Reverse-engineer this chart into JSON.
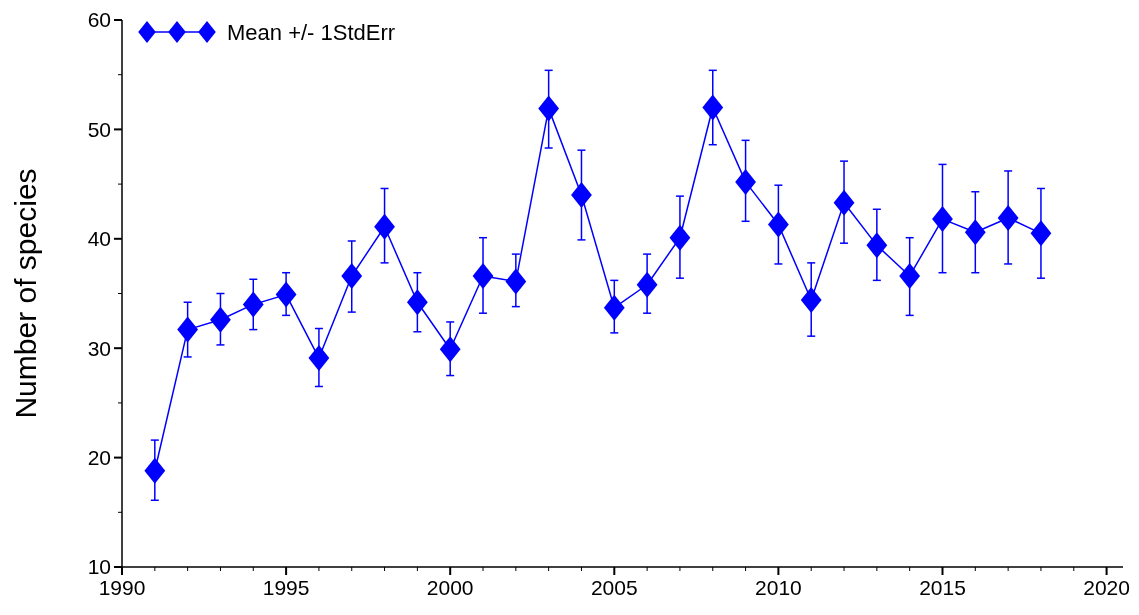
{
  "chart_data": {
    "type": "line",
    "ylabel": "Number of species",
    "x": [
      1991,
      1992,
      1993,
      1994,
      1995,
      1996,
      1997,
      1998,
      1999,
      2000,
      2001,
      2002,
      2003,
      2004,
      2005,
      2006,
      2007,
      2008,
      2009,
      2010,
      2011,
      2012,
      2013,
      2014,
      2015,
      2016,
      2017,
      2018
    ],
    "series": [
      {
        "name": "Mean +/- 1StdErr",
        "color": "#0000ff",
        "values": [
          18.8,
          31.7,
          32.6,
          34.0,
          34.9,
          29.1,
          36.6,
          41.1,
          34.2,
          29.9,
          36.6,
          36.1,
          51.9,
          44.0,
          33.7,
          35.8,
          40.1,
          52.0,
          45.2,
          41.3,
          34.4,
          43.3,
          39.4,
          36.6,
          41.8,
          40.6,
          41.9,
          40.5
        ],
        "errors": [
          [
            16.1,
            21.6
          ],
          [
            29.2,
            34.2
          ],
          [
            30.3,
            35.0
          ],
          [
            31.7,
            36.3
          ],
          [
            33.0,
            36.9
          ],
          [
            26.5,
            31.8
          ],
          [
            33.3,
            39.8
          ],
          [
            37.8,
            44.6
          ],
          [
            31.5,
            36.9
          ],
          [
            27.5,
            32.4
          ],
          [
            33.2,
            40.1
          ],
          [
            33.8,
            38.6
          ],
          [
            48.3,
            55.4
          ],
          [
            39.9,
            48.1
          ],
          [
            31.4,
            36.2
          ],
          [
            33.2,
            38.6
          ],
          [
            36.4,
            43.9
          ],
          [
            48.6,
            55.4
          ],
          [
            41.6,
            49.0
          ],
          [
            37.7,
            44.9
          ],
          [
            31.1,
            37.8
          ],
          [
            39.6,
            47.1
          ],
          [
            36.2,
            42.7
          ],
          [
            33.0,
            40.1
          ],
          [
            36.9,
            46.8
          ],
          [
            36.9,
            44.3
          ],
          [
            37.7,
            46.2
          ],
          [
            36.4,
            44.6
          ]
        ]
      }
    ],
    "xlim": [
      1990,
      2020.5
    ],
    "xticks": [
      1990,
      {
        "value": 1991,
        "label": null
      },
      {
        "value": 1992,
        "label": null
      },
      {
        "value": 1993,
        "label": null
      },
      {
        "value": 1994,
        "label": null
      },
      1995,
      {
        "value": 1996,
        "label": null
      },
      {
        "value": 1997,
        "label": null
      },
      {
        "value": 1998,
        "label": null
      },
      {
        "value": 1999,
        "label": null
      },
      2000,
      {
        "value": 2001,
        "label": null
      },
      {
        "value": 2002,
        "label": null
      },
      {
        "value": 2003,
        "label": null
      },
      {
        "value": 2004,
        "label": null
      },
      2005,
      {
        "value": 2006,
        "label": null
      },
      {
        "value": 2007,
        "label": null
      },
      {
        "value": 2008,
        "label": null
      },
      {
        "value": 2009,
        "label": null
      },
      2010,
      {
        "value": 2011,
        "label": null
      },
      {
        "value": 2012,
        "label": null
      },
      {
        "value": 2013,
        "label": null
      },
      {
        "value": 2014,
        "label": null
      },
      2015,
      {
        "value": 2016,
        "label": null
      },
      {
        "value": 2017,
        "label": null
      },
      {
        "value": 2018,
        "label": null
      },
      {
        "value": 2019,
        "label": null
      },
      2020
    ],
    "ylim": [
      10,
      60
    ],
    "yticks": [
      10,
      {
        "value": 15,
        "label": null
      },
      20,
      {
        "value": 25,
        "label": null
      },
      30,
      {
        "value": 35,
        "label": null
      },
      40,
      {
        "value": 45,
        "label": null
      },
      50,
      {
        "value": 55,
        "label": null
      },
      60
    ],
    "grid": false,
    "legend": "top left",
    "marker": "diamond",
    "line_style": "solid"
  }
}
